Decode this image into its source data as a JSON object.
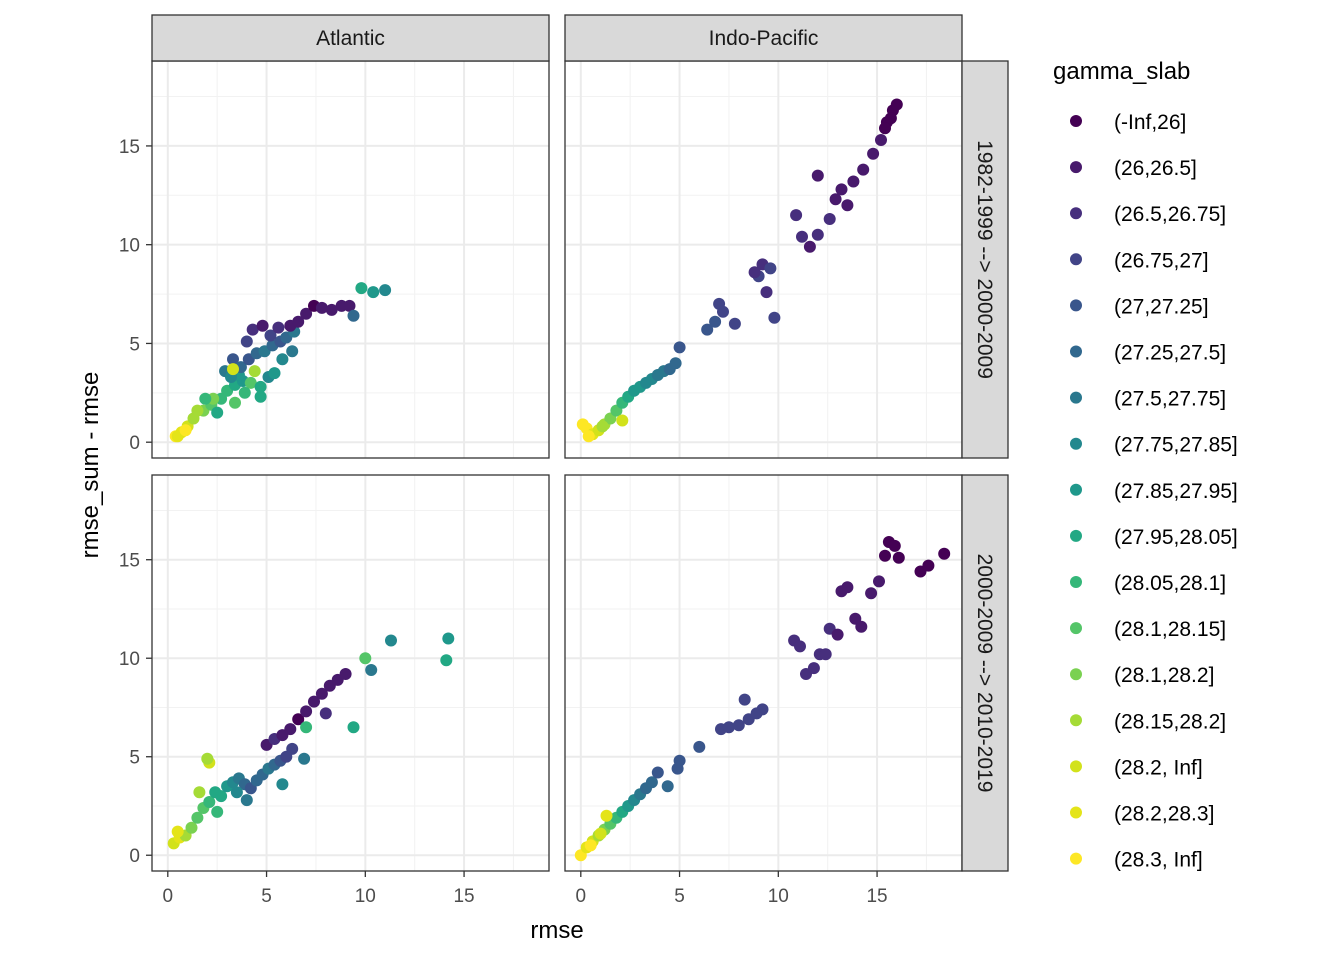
{
  "chart_data": {
    "type": "scatter",
    "xlabel": "rmse",
    "ylabel": "rmse_sum - rmse",
    "xlim": [
      -0.8,
      19.3
    ],
    "ylim": [
      -0.8,
      19.3
    ],
    "x_ticks": [
      0,
      5,
      10,
      15
    ],
    "y_ticks": [
      0,
      5,
      10,
      15
    ],
    "grid": true,
    "facet_cols": [
      "Atlantic",
      "Indo-Pacific"
    ],
    "facet_rows": [
      "1982-1999 --> 2000-2009",
      "2000-2009 --> 2010-2019"
    ],
    "legend": {
      "title": "gamma_slab",
      "position": "right",
      "entries": [
        {
          "label": "(-Inf,26]",
          "color": "#440154"
        },
        {
          "label": "(26,26.5]",
          "color": "#481a6c"
        },
        {
          "label": "(26.5,26.75]",
          "color": "#472f7d"
        },
        {
          "label": "(26.75,27]",
          "color": "#414487"
        },
        {
          "label": "(27,27.25]",
          "color": "#39568c"
        },
        {
          "label": "(27.25,27.5]",
          "color": "#31688e"
        },
        {
          "label": "(27.5,27.75]",
          "color": "#2a788e"
        },
        {
          "label": "(27.75,27.85]",
          "color": "#23888e"
        },
        {
          "label": "(27.85,27.95]",
          "color": "#1f988b"
        },
        {
          "label": "(27.95,28.05]",
          "color": "#22a884"
        },
        {
          "label": "(28.05,28.1]",
          "color": "#35b779"
        },
        {
          "label": "(28.1,28.15]",
          "color": "#54c568"
        },
        {
          "label": "(28.1,28.2]",
          "color": "#7ad151"
        },
        {
          "label": "(28.15,28.2]",
          "color": "#a5db36"
        },
        {
          "label": "(28.2, Inf]",
          "color": "#d2e21b"
        },
        {
          "label": "(28.2,28.3]",
          "color": "#e4e419"
        },
        {
          "label": "(28.3, Inf]",
          "color": "#fde725"
        }
      ]
    },
    "panels": [
      {
        "col": 0,
        "row": 0,
        "points": [
          [
            0.4,
            0.3,
            16
          ],
          [
            0.7,
            0.5,
            15
          ],
          [
            1.0,
            0.8,
            14
          ],
          [
            1.3,
            1.2,
            13
          ],
          [
            1.8,
            1.6,
            12
          ],
          [
            2.2,
            1.9,
            11
          ],
          [
            2.7,
            2.2,
            10
          ],
          [
            3.0,
            2.6,
            10
          ],
          [
            3.4,
            2.9,
            9
          ],
          [
            3.8,
            3.1,
            8
          ],
          [
            4.2,
            3.0,
            11
          ],
          [
            3.6,
            3.4,
            8
          ],
          [
            4.4,
            3.6,
            13
          ],
          [
            4.7,
            2.8,
            9
          ],
          [
            5.1,
            3.3,
            7
          ],
          [
            5.4,
            3.5,
            8
          ],
          [
            3.3,
            4.2,
            4
          ],
          [
            3.7,
            3.8,
            5
          ],
          [
            4.1,
            4.2,
            4
          ],
          [
            4.5,
            4.5,
            5
          ],
          [
            4.9,
            4.6,
            6
          ],
          [
            5.3,
            4.9,
            5
          ],
          [
            5.7,
            5.1,
            4
          ],
          [
            6.0,
            5.3,
            5
          ],
          [
            6.4,
            5.6,
            6
          ],
          [
            2.9,
            3.6,
            6
          ],
          [
            3.2,
            3.3,
            7
          ],
          [
            4.0,
            5.1,
            3
          ],
          [
            4.3,
            5.7,
            2
          ],
          [
            4.8,
            5.9,
            1
          ],
          [
            5.2,
            5.4,
            3
          ],
          [
            5.6,
            5.8,
            2
          ],
          [
            6.2,
            5.9,
            1
          ],
          [
            6.6,
            6.1,
            1
          ],
          [
            7.0,
            6.5,
            1
          ],
          [
            7.4,
            6.9,
            0
          ],
          [
            7.8,
            6.8,
            1
          ],
          [
            8.3,
            6.7,
            1
          ],
          [
            8.8,
            6.9,
            1
          ],
          [
            9.2,
            6.9,
            1
          ],
          [
            9.8,
            7.8,
            9
          ],
          [
            10.4,
            7.6,
            8
          ],
          [
            11.0,
            7.7,
            7
          ],
          [
            9.4,
            6.4,
            5
          ],
          [
            0.5,
            0.3,
            15
          ],
          [
            0.9,
            0.6,
            16
          ],
          [
            1.5,
            1.6,
            13
          ],
          [
            2.3,
            2.2,
            12
          ],
          [
            3.3,
            3.7,
            14
          ],
          [
            3.4,
            2.0,
            11
          ],
          [
            3.9,
            2.5,
            10
          ],
          [
            2.5,
            1.5,
            9
          ],
          [
            1.9,
            2.2,
            10
          ],
          [
            4.7,
            2.3,
            9
          ],
          [
            5.8,
            4.2,
            7
          ],
          [
            6.3,
            4.6,
            6
          ]
        ]
      },
      {
        "col": 1,
        "row": 0,
        "points": [
          [
            0.1,
            0.9,
            16
          ],
          [
            0.3,
            0.7,
            16
          ],
          [
            0.6,
            0.4,
            15
          ],
          [
            0.9,
            0.6,
            14
          ],
          [
            1.2,
            0.9,
            13
          ],
          [
            1.5,
            1.2,
            12
          ],
          [
            1.8,
            1.6,
            11
          ],
          [
            2.1,
            2.0,
            10
          ],
          [
            2.4,
            2.3,
            9
          ],
          [
            2.7,
            2.6,
            8
          ],
          [
            3.0,
            2.8,
            8
          ],
          [
            3.3,
            3.0,
            7
          ],
          [
            3.6,
            3.2,
            7
          ],
          [
            3.9,
            3.4,
            6
          ],
          [
            4.2,
            3.6,
            6
          ],
          [
            4.5,
            3.7,
            5
          ],
          [
            4.8,
            4.0,
            5
          ],
          [
            5.0,
            4.8,
            4
          ],
          [
            6.4,
            5.7,
            4
          ],
          [
            6.8,
            6.1,
            4
          ],
          [
            7.2,
            6.6,
            3
          ],
          [
            7.0,
            7.0,
            3
          ],
          [
            7.8,
            6.0,
            3
          ],
          [
            9.0,
            8.4,
            3
          ],
          [
            9.2,
            9.0,
            2
          ],
          [
            8.8,
            8.6,
            2
          ],
          [
            9.6,
            8.8,
            3
          ],
          [
            9.4,
            7.6,
            2
          ],
          [
            9.8,
            6.3,
            3
          ],
          [
            10.9,
            11.5,
            2
          ],
          [
            11.2,
            10.4,
            2
          ],
          [
            11.6,
            9.9,
            1
          ],
          [
            12.0,
            10.5,
            2
          ],
          [
            12.6,
            11.3,
            2
          ],
          [
            12.9,
            12.3,
            1
          ],
          [
            12.0,
            13.5,
            1
          ],
          [
            13.2,
            12.8,
            1
          ],
          [
            13.8,
            13.2,
            1
          ],
          [
            13.5,
            12.0,
            1
          ],
          [
            14.3,
            13.8,
            1
          ],
          [
            14.8,
            14.6,
            1
          ],
          [
            15.2,
            15.3,
            1
          ],
          [
            15.5,
            16.2,
            0
          ],
          [
            15.8,
            16.8,
            0
          ],
          [
            16.0,
            17.1,
            0
          ],
          [
            15.7,
            16.4,
            0
          ],
          [
            15.4,
            15.9,
            0
          ],
          [
            2.1,
            1.1,
            14
          ],
          [
            1.1,
            0.8,
            13
          ],
          [
            0.4,
            0.3,
            16
          ]
        ]
      },
      {
        "col": 0,
        "row": 1,
        "points": [
          [
            0.3,
            0.6,
            14
          ],
          [
            0.6,
            0.9,
            15
          ],
          [
            0.9,
            1.0,
            13
          ],
          [
            1.2,
            1.4,
            12
          ],
          [
            1.5,
            1.9,
            11
          ],
          [
            1.8,
            2.4,
            11
          ],
          [
            2.1,
            2.7,
            10
          ],
          [
            2.1,
            4.7,
            14
          ],
          [
            2.4,
            3.2,
            9
          ],
          [
            2.7,
            3.0,
            9
          ],
          [
            3.0,
            3.5,
            8
          ],
          [
            3.3,
            3.7,
            7
          ],
          [
            3.6,
            3.9,
            6
          ],
          [
            3.9,
            3.6,
            5
          ],
          [
            4.2,
            3.4,
            4
          ],
          [
            4.5,
            3.8,
            5
          ],
          [
            4.8,
            4.1,
            5
          ],
          [
            5.1,
            4.4,
            6
          ],
          [
            5.4,
            4.6,
            5
          ],
          [
            5.7,
            4.8,
            4
          ],
          [
            6.0,
            5.0,
            3
          ],
          [
            6.3,
            5.4,
            3
          ],
          [
            5.0,
            5.6,
            1
          ],
          [
            5.4,
            5.9,
            2
          ],
          [
            5.8,
            6.1,
            1
          ],
          [
            6.2,
            6.4,
            1
          ],
          [
            6.6,
            6.9,
            0
          ],
          [
            7.0,
            7.3,
            1
          ],
          [
            7.4,
            7.8,
            1
          ],
          [
            7.8,
            8.2,
            1
          ],
          [
            8.2,
            8.6,
            1
          ],
          [
            8.6,
            8.9,
            1
          ],
          [
            9.0,
            9.2,
            1
          ],
          [
            8.0,
            7.2,
            2
          ],
          [
            7.0,
            6.5,
            10
          ],
          [
            9.4,
            6.5,
            9
          ],
          [
            10.0,
            10.0,
            11
          ],
          [
            10.3,
            9.4,
            6
          ],
          [
            11.3,
            10.9,
            7
          ],
          [
            14.2,
            11.0,
            8
          ],
          [
            14.1,
            9.9,
            9
          ],
          [
            4.0,
            2.8,
            6
          ],
          [
            3.5,
            3.2,
            7
          ],
          [
            2.5,
            2.2,
            10
          ],
          [
            1.6,
            3.2,
            13
          ],
          [
            5.8,
            3.6,
            7
          ],
          [
            6.9,
            4.9,
            6
          ],
          [
            2.0,
            4.9,
            13
          ],
          [
            0.5,
            1.2,
            15
          ]
        ]
      },
      {
        "col": 1,
        "row": 1,
        "points": [
          [
            0.0,
            0.0,
            16
          ],
          [
            0.3,
            0.4,
            15
          ],
          [
            0.6,
            0.7,
            14
          ],
          [
            0.9,
            1.0,
            13
          ],
          [
            1.2,
            1.3,
            12
          ],
          [
            1.5,
            1.6,
            11
          ],
          [
            1.8,
            1.9,
            10
          ],
          [
            2.1,
            2.2,
            9
          ],
          [
            2.4,
            2.5,
            8
          ],
          [
            2.7,
            2.8,
            7
          ],
          [
            3.0,
            3.1,
            6
          ],
          [
            3.3,
            3.4,
            5
          ],
          [
            3.6,
            3.7,
            5
          ],
          [
            3.9,
            4.2,
            4
          ],
          [
            5.0,
            4.8,
            4
          ],
          [
            4.9,
            4.4,
            4
          ],
          [
            7.1,
            6.4,
            3
          ],
          [
            7.5,
            6.5,
            3
          ],
          [
            8.0,
            6.6,
            3
          ],
          [
            8.5,
            6.9,
            3
          ],
          [
            8.9,
            7.2,
            3
          ],
          [
            9.2,
            7.4,
            3
          ],
          [
            8.3,
            7.9,
            3
          ],
          [
            10.8,
            10.9,
            2
          ],
          [
            11.1,
            10.6,
            2
          ],
          [
            11.4,
            9.2,
            2
          ],
          [
            11.8,
            9.5,
            2
          ],
          [
            12.1,
            10.2,
            2
          ],
          [
            12.6,
            11.5,
            2
          ],
          [
            13.0,
            11.2,
            1
          ],
          [
            13.2,
            13.4,
            1
          ],
          [
            13.5,
            13.6,
            1
          ],
          [
            13.9,
            12.0,
            1
          ],
          [
            14.2,
            11.6,
            1
          ],
          [
            14.7,
            13.3,
            1
          ],
          [
            15.1,
            13.9,
            1
          ],
          [
            15.4,
            15.2,
            0
          ],
          [
            15.6,
            15.9,
            0
          ],
          [
            15.9,
            15.7,
            0
          ],
          [
            16.1,
            15.1,
            0
          ],
          [
            17.2,
            14.4,
            0
          ],
          [
            17.6,
            14.7,
            0
          ],
          [
            18.4,
            15.3,
            0
          ],
          [
            12.4,
            10.2,
            2
          ],
          [
            1.3,
            2.0,
            15
          ],
          [
            0.5,
            0.5,
            16
          ],
          [
            1.0,
            1.1,
            14
          ],
          [
            4.4,
            3.5,
            5
          ],
          [
            6.0,
            5.5,
            4
          ]
        ]
      }
    ]
  }
}
